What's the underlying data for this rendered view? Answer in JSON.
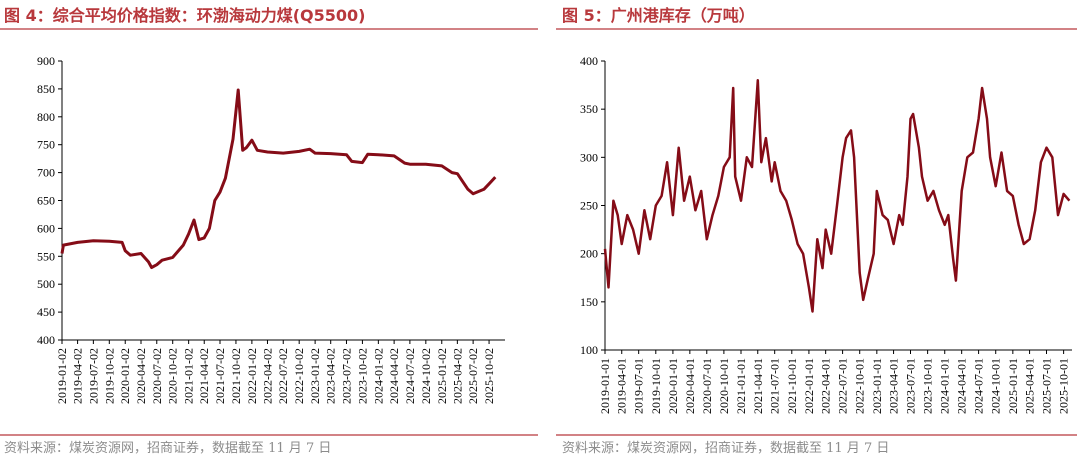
{
  "chart_data": [
    {
      "type": "line",
      "title": "图 4：综合平均价格指数：环渤海动力煤(Q5500)",
      "source": "资料来源：煤炭资源网，招商证券，数据截至 11 月 7 日",
      "color": "#850c17",
      "x": [
        "2019-01-02",
        "2019-01-10",
        "2019-04-02",
        "2019-07-02",
        "2019-10-02",
        "2019-12-15",
        "2020-01-02",
        "2020-02-01",
        "2020-04-02",
        "2020-05-15",
        "2020-06-02",
        "2020-07-02",
        "2020-08-02",
        "2020-10-02",
        "2020-12-02",
        "2021-01-02",
        "2021-02-02",
        "2021-03-02",
        "2021-04-02",
        "2021-05-02",
        "2021-06-02",
        "2021-07-02",
        "2021-08-02",
        "2021-09-15",
        "2021-10-15",
        "2021-11-10",
        "2021-12-02",
        "2022-01-02",
        "2022-02-02",
        "2022-04-02",
        "2022-07-02",
        "2022-10-02",
        "2022-12-02",
        "2023-01-02",
        "2023-04-02",
        "2023-07-02",
        "2023-08-02",
        "2023-10-02",
        "2023-11-02",
        "2024-01-02",
        "2024-04-02",
        "2024-06-02",
        "2024-07-02",
        "2024-10-02",
        "2025-01-02",
        "2025-03-02",
        "2025-04-02",
        "2025-06-02",
        "2025-07-02",
        "2025-09-02",
        "2025-10-02",
        "2025-11-07"
      ],
      "values": [
        555,
        570,
        575,
        578,
        577,
        575,
        560,
        552,
        555,
        540,
        530,
        535,
        543,
        548,
        570,
        590,
        615,
        580,
        583,
        600,
        650,
        665,
        690,
        760,
        848,
        740,
        745,
        758,
        740,
        737,
        735,
        738,
        742,
        735,
        734,
        732,
        720,
        718,
        733,
        732,
        730,
        717,
        715,
        715,
        712,
        700,
        698,
        670,
        662,
        670,
        680,
        692
      ],
      "xlim": [
        "2019-01-02",
        "2026-01-02"
      ],
      "xticks": [
        "2019-01-02",
        "2019-04-02",
        "2019-07-02",
        "2019-10-02",
        "2020-01-02",
        "2020-04-02",
        "2020-07-02",
        "2020-10-02",
        "2021-01-02",
        "2021-04-02",
        "2021-07-02",
        "2021-10-02",
        "2022-01-02",
        "2022-04-02",
        "2022-07-02",
        "2022-10-02",
        "2023-01-02",
        "2023-04-02",
        "2023-07-02",
        "2023-10-02",
        "2024-01-02",
        "2024-04-02",
        "2024-07-02",
        "2024-10-02",
        "2025-01-02",
        "2025-04-02",
        "2025-07-02",
        "2025-10-02"
      ],
      "ylim": [
        400,
        900
      ],
      "yticks": [
        400,
        450,
        500,
        550,
        600,
        650,
        700,
        750,
        800,
        850,
        900
      ]
    },
    {
      "type": "line",
      "title": "图 5：广州港库存（万吨）",
      "source": "资料来源：煤炭资源网，招商证券，数据截至 11 月 7 日",
      "color": "#850c17",
      "x": [
        "2019-01-01",
        "2019-01-20",
        "2019-02-15",
        "2019-03-10",
        "2019-04-01",
        "2019-05-01",
        "2019-06-01",
        "2019-07-01",
        "2019-08-01",
        "2019-09-01",
        "2019-10-01",
        "2019-11-01",
        "2019-12-01",
        "2020-01-01",
        "2020-02-01",
        "2020-03-01",
        "2020-04-01",
        "2020-05-01",
        "2020-06-01",
        "2020-07-01",
        "2020-08-01",
        "2020-09-01",
        "2020-10-01",
        "2020-11-01",
        "2020-11-20",
        "2020-12-01",
        "2021-01-01",
        "2021-02-01",
        "2021-03-01",
        "2021-04-01",
        "2021-04-20",
        "2021-05-15",
        "2021-06-15",
        "2021-07-01",
        "2021-08-01",
        "2021-09-01",
        "2021-10-01",
        "2021-11-01",
        "2021-12-01",
        "2022-01-01",
        "2022-01-20",
        "2022-02-15",
        "2022-03-15",
        "2022-04-01",
        "2022-05-01",
        "2022-06-01",
        "2022-07-01",
        "2022-07-20",
        "2022-08-15",
        "2022-09-01",
        "2022-10-01",
        "2022-10-20",
        "2022-11-15",
        "2022-12-15",
        "2023-01-01",
        "2023-02-01",
        "2023-03-01",
        "2023-04-01",
        "2023-05-01",
        "2023-05-20",
        "2023-06-15",
        "2023-07-01",
        "2023-07-15",
        "2023-08-15",
        "2023-09-01",
        "2023-10-01",
        "2023-11-01",
        "2023-12-01",
        "2024-01-01",
        "2024-01-20",
        "2024-02-15",
        "2024-03-01",
        "2024-04-01",
        "2024-05-01",
        "2024-06-01",
        "2024-07-01",
        "2024-07-20",
        "2024-08-15",
        "2024-09-01",
        "2024-10-01",
        "2024-11-01",
        "2024-12-01",
        "2025-01-01",
        "2025-02-01",
        "2025-03-01",
        "2025-04-01",
        "2025-05-01",
        "2025-06-01",
        "2025-07-01",
        "2025-08-01",
        "2025-09-01",
        "2025-10-01",
        "2025-11-01"
      ],
      "values": [
        205,
        165,
        255,
        240,
        210,
        240,
        225,
        200,
        245,
        215,
        250,
        260,
        295,
        240,
        310,
        255,
        280,
        245,
        265,
        215,
        240,
        260,
        290,
        300,
        372,
        280,
        255,
        300,
        290,
        380,
        295,
        320,
        275,
        295,
        265,
        255,
        235,
        210,
        200,
        165,
        140,
        215,
        185,
        225,
        200,
        250,
        300,
        320,
        328,
        300,
        180,
        152,
        175,
        200,
        265,
        240,
        235,
        210,
        240,
        230,
        280,
        340,
        345,
        310,
        280,
        255,
        265,
        245,
        230,
        240,
        195,
        172,
        265,
        300,
        305,
        340,
        372,
        340,
        300,
        270,
        305,
        265,
        260,
        230,
        210,
        215,
        245,
        295,
        310,
        300,
        240,
        262,
        255
      ],
      "xlim": [
        "2019-01-01",
        "2025-11-15"
      ],
      "xticks": [
        "2019-01-01",
        "2019-04-01",
        "2019-07-01",
        "2019-10-01",
        "2020-01-01",
        "2020-04-01",
        "2020-07-01",
        "2020-10-01",
        "2021-01-01",
        "2021-04-01",
        "2021-07-01",
        "2021-10-01",
        "2022-01-01",
        "2022-04-01",
        "2022-07-01",
        "2022-10-01",
        "2023-01-01",
        "2023-04-01",
        "2023-07-01",
        "2023-10-01",
        "2024-01-01",
        "2024-04-01",
        "2024-07-01",
        "2024-10-01",
        "2025-01-01",
        "2025-04-01",
        "2025-07-01",
        "2025-10-01"
      ],
      "ylim": [
        100,
        400
      ],
      "yticks": [
        100,
        150,
        200,
        250,
        300,
        350,
        400
      ]
    }
  ]
}
